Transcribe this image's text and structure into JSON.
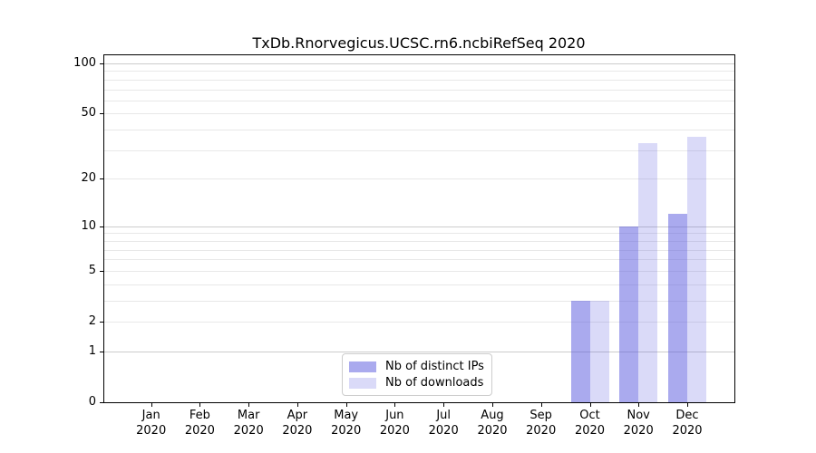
{
  "chart_data": {
    "type": "bar",
    "title": "TxDb.Rnorvegicus.UCSC.rn6.ncbiRefSeq 2020",
    "categories": [
      "Jan",
      "Feb",
      "Mar",
      "Apr",
      "May",
      "Jun",
      "Jul",
      "Aug",
      "Sep",
      "Oct",
      "Nov",
      "Dec"
    ],
    "category_year": "2020",
    "series": [
      {
        "name": "Nb of distinct IPs",
        "color": "rgba(85,85,221,0.50)",
        "values": [
          0,
          0,
          0,
          0,
          0,
          0,
          0,
          0,
          0,
          3,
          10,
          12
        ]
      },
      {
        "name": "Nb of downloads",
        "color": "rgba(85,85,221,0.22)",
        "values": [
          0,
          0,
          0,
          0,
          0,
          0,
          0,
          0,
          0,
          3,
          33,
          36
        ]
      }
    ],
    "y_scale": "log1p",
    "ylim": [
      0,
      113
    ],
    "y_axis_ticks": [
      0,
      1,
      2,
      5,
      10,
      20,
      50,
      100
    ],
    "y_grid_major": [
      1,
      10,
      100
    ],
    "y_grid_minor": [
      2,
      3,
      4,
      5,
      6,
      7,
      8,
      9,
      20,
      30,
      40,
      50,
      60,
      70,
      80,
      90
    ],
    "grid": true,
    "legend_position": "bottom-center",
    "xlabel": "",
    "ylabel": ""
  },
  "colors": {
    "grid_major": "#cccccc",
    "grid_minor": "#e8e8e8",
    "spine": "#000000",
    "text": "#000000",
    "legend_border": "#cccccc",
    "legend_background": "#ffffff"
  }
}
